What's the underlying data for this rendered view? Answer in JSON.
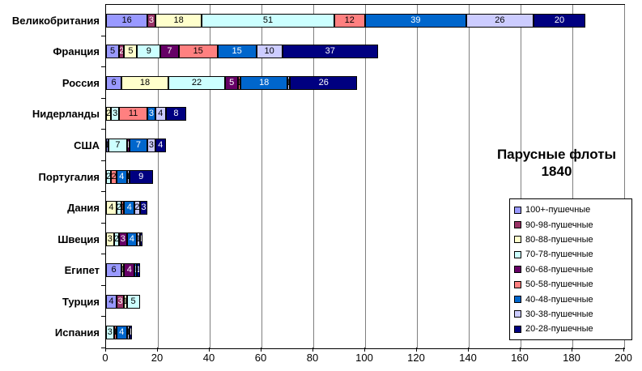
{
  "title": {
    "line1": "Парусные флоты",
    "line2": "1840"
  },
  "chart_data": {
    "type": "bar",
    "orientation": "horizontal",
    "stacked": true,
    "title": "Парусные флоты 1840",
    "categories": [
      "Великобритания",
      "Франция",
      "Россия",
      "Нидерланды",
      "США",
      "Португалия",
      "Дания",
      "Швеция",
      "Египет",
      "Турция",
      "Испания"
    ],
    "series": [
      {
        "name": "100+-пушечные",
        "color": "#9999FF",
        "values": [
          16,
          5,
          6,
          0,
          1,
          0,
          0,
          0,
          6,
          4,
          0
        ]
      },
      {
        "name": "90-98-пушечные",
        "color": "#993366",
        "values": [
          3,
          2,
          0,
          0,
          0,
          0,
          0,
          0,
          0,
          3,
          0
        ]
      },
      {
        "name": "80-88-пушечные",
        "color": "#FFFFCC",
        "values": [
          18,
          5,
          18,
          2,
          0,
          0,
          4,
          3,
          1,
          1,
          0
        ]
      },
      {
        "name": "70-78-пушечные",
        "color": "#CCFFFF",
        "values": [
          51,
          9,
          22,
          3,
          7,
          2,
          2,
          2,
          0,
          5,
          3
        ]
      },
      {
        "name": "60-68-пушечные",
        "color": "#660066",
        "values": [
          0,
          7,
          5,
          0,
          1,
          0,
          0,
          3,
          4,
          0,
          0
        ]
      },
      {
        "name": "50-58-пушечные",
        "color": "#FF8080",
        "values": [
          12,
          15,
          1,
          11,
          0,
          2,
          1,
          0,
          0,
          0,
          1
        ]
      },
      {
        "name": "40-48-пушечные",
        "color": "#0066CC",
        "values": [
          39,
          15,
          18,
          3,
          7,
          4,
          4,
          4,
          1,
          0,
          4
        ]
      },
      {
        "name": "30-38-пушечные",
        "color": "#CCCCFF",
        "values": [
          26,
          10,
          1,
          4,
          3,
          1,
          2,
          1,
          0,
          0,
          1
        ]
      },
      {
        "name": "20-28-пушечные",
        "color": "#000080",
        "values": [
          20,
          37,
          26,
          8,
          4,
          9,
          3,
          1,
          1,
          0,
          1
        ]
      }
    ],
    "xlim": [
      0,
      200
    ],
    "x_ticks": [
      0,
      20,
      40,
      60,
      80,
      100,
      120,
      140,
      160,
      180,
      200
    ],
    "grid": "vertical-major",
    "legend_position": "bottom-right",
    "plot_bg": "#FFFFFF",
    "gridline_color": "#7F7F7F"
  }
}
